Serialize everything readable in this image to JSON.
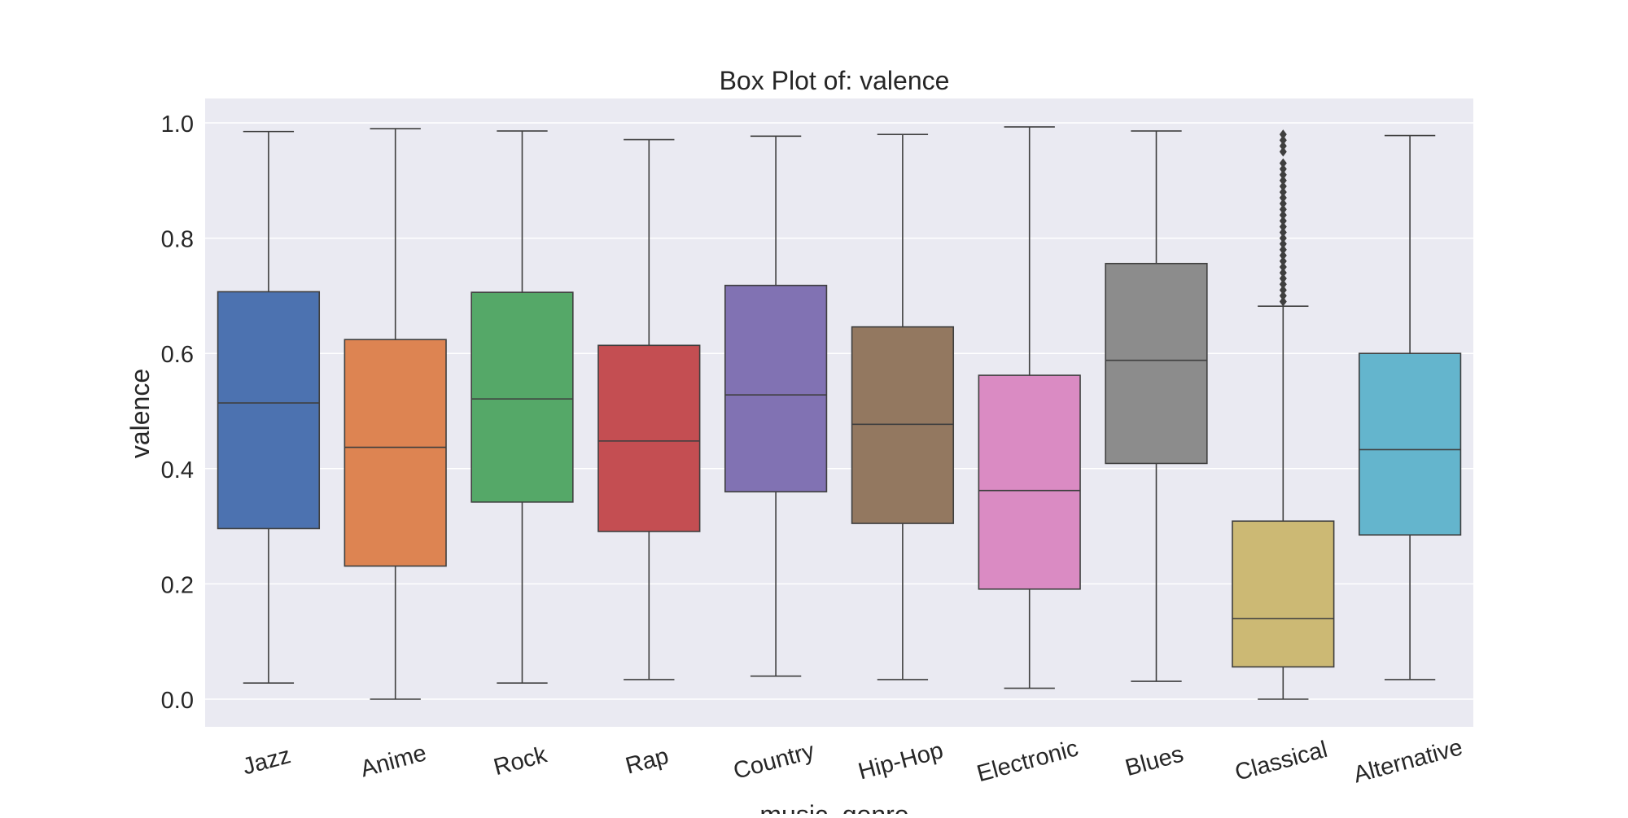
{
  "chart_data": {
    "type": "box",
    "title": "Box Plot of: valence",
    "xlabel": "music_genre",
    "ylabel": "valence",
    "ylim": [
      -0.048,
      1.04
    ],
    "yticks": [
      "0.0",
      "0.2",
      "0.4",
      "0.6",
      "0.8",
      "1.0"
    ],
    "grid": true,
    "background_color": "#eaeaf2",
    "categories": [
      "Jazz",
      "Anime",
      "Rock",
      "Rap",
      "Country",
      "Hip-Hop",
      "Electronic",
      "Blues",
      "Classical",
      "Alternative"
    ],
    "boxes": [
      {
        "category": "Jazz",
        "whisker_low": 0.028,
        "q1": 0.296,
        "median": 0.514,
        "q3": 0.707,
        "whisker_high": 0.985,
        "color": "#4c72b0",
        "outliers": []
      },
      {
        "category": "Anime",
        "whisker_low": 0.0,
        "q1": 0.231,
        "median": 0.437,
        "q3": 0.624,
        "whisker_high": 0.99,
        "color": "#dd8452",
        "outliers": []
      },
      {
        "category": "Rock",
        "whisker_low": 0.028,
        "q1": 0.342,
        "median": 0.521,
        "q3": 0.706,
        "whisker_high": 0.986,
        "color": "#55a868",
        "outliers": []
      },
      {
        "category": "Rap",
        "whisker_low": 0.034,
        "q1": 0.291,
        "median": 0.448,
        "q3": 0.614,
        "whisker_high": 0.971,
        "color": "#c44e52",
        "outliers": []
      },
      {
        "category": "Country",
        "whisker_low": 0.04,
        "q1": 0.36,
        "median": 0.528,
        "q3": 0.718,
        "whisker_high": 0.977,
        "color": "#8172b3",
        "outliers": []
      },
      {
        "category": "Hip-Hop",
        "whisker_low": 0.034,
        "q1": 0.305,
        "median": 0.477,
        "q3": 0.646,
        "whisker_high": 0.98,
        "color": "#937860",
        "outliers": []
      },
      {
        "category": "Electronic",
        "whisker_low": 0.019,
        "q1": 0.191,
        "median": 0.362,
        "q3": 0.562,
        "whisker_high": 0.993,
        "color": "#da8bc3",
        "outliers": []
      },
      {
        "category": "Blues",
        "whisker_low": 0.031,
        "q1": 0.409,
        "median": 0.588,
        "q3": 0.756,
        "whisker_high": 0.986,
        "color": "#8c8c8c",
        "outliers": []
      },
      {
        "category": "Classical",
        "whisker_low": 0.0,
        "q1": 0.056,
        "median": 0.14,
        "q3": 0.309,
        "whisker_high": 0.682,
        "color": "#ccb974",
        "outliers": [
          0.69,
          0.7,
          0.71,
          0.72,
          0.73,
          0.74,
          0.75,
          0.76,
          0.77,
          0.78,
          0.79,
          0.8,
          0.81,
          0.82,
          0.83,
          0.84,
          0.85,
          0.86,
          0.87,
          0.88,
          0.89,
          0.9,
          0.91,
          0.92,
          0.93,
          0.95,
          0.96,
          0.97,
          0.98
        ]
      },
      {
        "category": "Alternative",
        "whisker_low": 0.034,
        "q1": 0.285,
        "median": 0.433,
        "q3": 0.6,
        "whisker_high": 0.978,
        "color": "#64b5cd",
        "outliers": []
      }
    ]
  }
}
